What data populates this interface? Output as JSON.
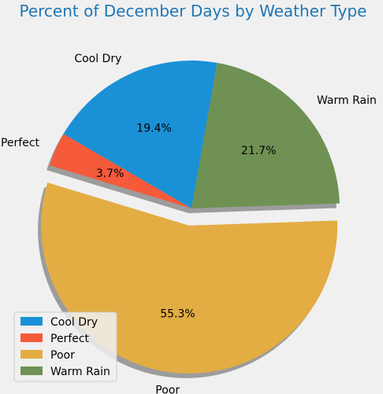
{
  "chart_data": {
    "type": "pie",
    "title": "Percent of December Days by Weather Type",
    "slices": [
      {
        "label": "Cool Dry",
        "value": 19.4,
        "pct_label": "19.4%",
        "color": "#1a91d6",
        "explode": false
      },
      {
        "label": "Perfect",
        "value": 3.7,
        "pct_label": "3.7%",
        "color": "#f55a3a",
        "explode": false
      },
      {
        "label": "Poor",
        "value": 55.3,
        "pct_label": "55.3%",
        "color": "#e3ad43",
        "explode": true
      },
      {
        "label": "Warm Rain",
        "value": 21.7,
        "pct_label": "21.7%",
        "color": "#6f9153",
        "explode": false
      }
    ],
    "start_angle_deg": 80,
    "direction": "counterclockwise",
    "shadow": true,
    "legend": {
      "position": "lower-left",
      "entries": [
        "Cool Dry",
        "Perfect",
        "Poor",
        "Warm Rain"
      ]
    },
    "background": "#f0f0f0"
  }
}
